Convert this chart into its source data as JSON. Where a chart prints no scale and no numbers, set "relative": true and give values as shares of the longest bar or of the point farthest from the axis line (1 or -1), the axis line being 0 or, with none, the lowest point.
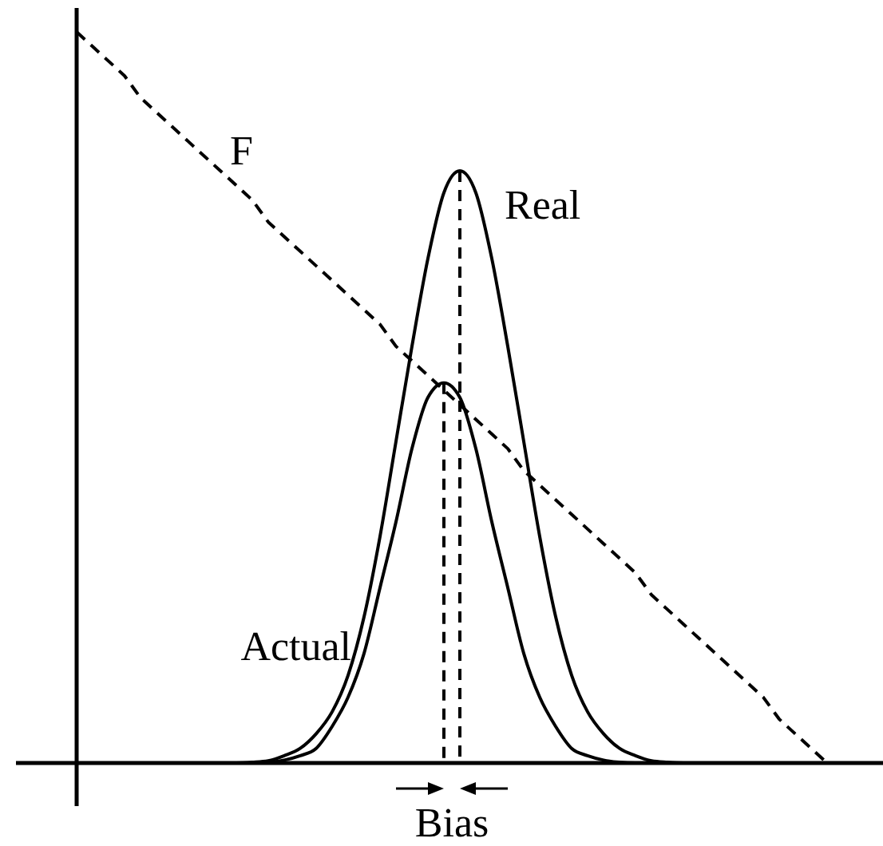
{
  "chart_data": {
    "type": "line",
    "relative": true,
    "legend": false,
    "grid": false,
    "tick_labels": false,
    "categories": [
      null,
      null,
      null,
      null,
      null,
      null,
      null,
      null,
      null,
      null,
      null,
      null,
      null,
      null,
      null,
      null,
      null,
      null,
      null,
      null,
      null,
      null,
      null,
      null,
      null,
      null,
      null,
      null,
      null,
      null,
      null,
      null,
      null,
      null,
      null,
      null,
      null,
      null,
      null,
      null,
      null,
      null,
      null,
      null,
      null,
      null,
      null,
      null,
      null,
      null,
      null
    ],
    "series": [
      {
        "name": "F",
        "color": "#000000",
        "line_style": "dashed",
        "values": [
          1.0,
          0.98,
          0.96,
          0.94,
          0.91,
          0.89,
          0.87,
          0.85,
          0.83,
          0.81,
          0.79,
          0.77,
          0.74,
          0.72,
          0.7,
          0.68,
          0.66,
          0.64,
          0.62,
          0.6,
          0.57,
          0.55,
          0.53,
          0.51,
          0.49,
          0.47,
          0.45,
          0.43,
          0.4,
          0.38,
          0.36,
          0.34,
          0.32,
          0.3,
          0.28,
          0.26,
          0.23,
          0.21,
          0.19,
          0.17,
          0.15,
          0.13,
          0.11,
          0.09,
          0.06,
          0.04,
          0.02,
          0.0,
          null,
          null,
          null
        ]
      },
      {
        "name": "Real",
        "color": "#000000",
        "line_style": "solid",
        "values": [
          null,
          null,
          null,
          null,
          null,
          null,
          0,
          0,
          0,
          0,
          0,
          0.001,
          0.003,
          0.01,
          0.02,
          0.04,
          0.07,
          0.12,
          0.2,
          0.31,
          0.44,
          0.57,
          0.69,
          0.78,
          0.81,
          0.78,
          0.69,
          0.57,
          0.44,
          0.31,
          0.2,
          0.12,
          0.07,
          0.04,
          0.02,
          0.01,
          0.003,
          0.001,
          0,
          0,
          0,
          0,
          0,
          null,
          null,
          null,
          null,
          null,
          null,
          null,
          null
        ]
      },
      {
        "name": "Actual",
        "color": "#000000",
        "line_style": "solid",
        "values": [
          null,
          null,
          null,
          null,
          null,
          null,
          0,
          0,
          0,
          0,
          0,
          0,
          0.001,
          0.004,
          0.01,
          0.02,
          0.05,
          0.09,
          0.15,
          0.24,
          0.33,
          0.43,
          0.5,
          0.52,
          0.5,
          0.43,
          0.33,
          0.24,
          0.15,
          0.09,
          0.05,
          0.02,
          0.01,
          0.004,
          0.001,
          0,
          0,
          0,
          0,
          0,
          0,
          0,
          0,
          null,
          null,
          null,
          null,
          null,
          null,
          null,
          null
        ]
      }
    ],
    "annotations": [
      "Bias"
    ]
  }
}
